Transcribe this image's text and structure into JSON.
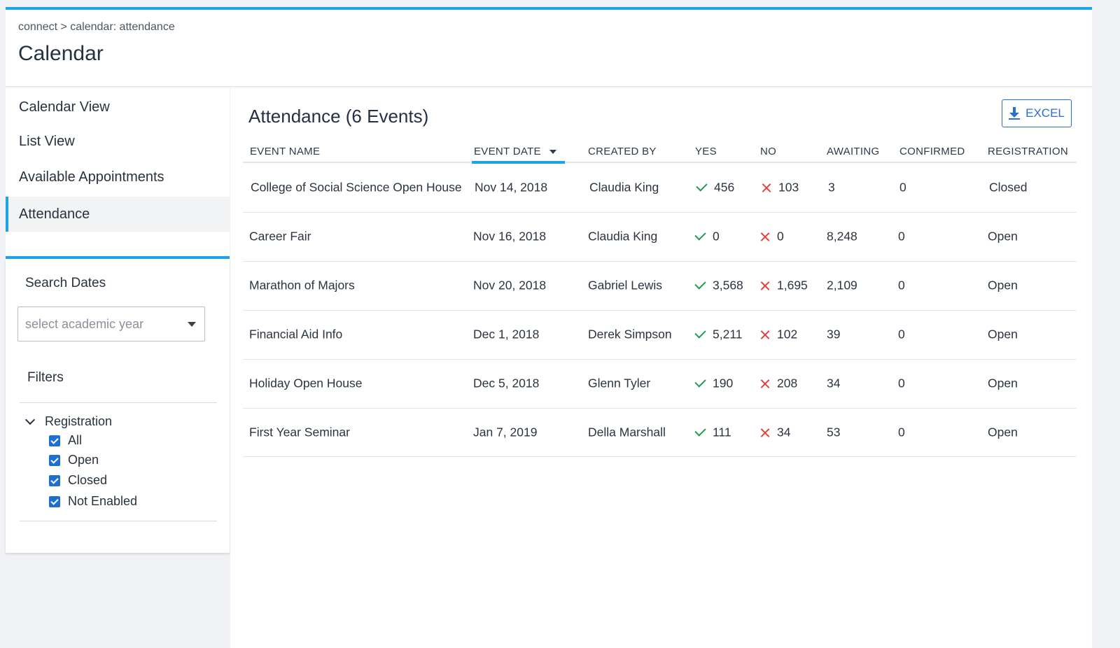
{
  "header": {
    "breadcrumb": "connect > calendar: attendance",
    "title": "Calendar"
  },
  "sidebar": {
    "nav": [
      {
        "label": "Calendar View"
      },
      {
        "label": "List View"
      },
      {
        "label": "Available Appointments"
      },
      {
        "label": "Attendance",
        "active": true
      }
    ],
    "search_dates_label": "Search Dates",
    "academic_year_placeholder": "select academic year",
    "filters_label": "Filters",
    "registration_group": {
      "label": "Registration",
      "options": [
        {
          "label": "All",
          "checked": true
        },
        {
          "label": "Open",
          "checked": true
        },
        {
          "label": "Closed",
          "checked": true
        },
        {
          "label": "Not Enabled",
          "checked": true
        }
      ]
    }
  },
  "main": {
    "title": "Attendance (6 Events)",
    "excel_label": "EXCEL",
    "columns": {
      "event_name": "EVENT NAME",
      "event_date": "EVENT DATE",
      "created_by": "CREATED BY",
      "yes": "YES",
      "no": "NO",
      "awaiting": "AWAITING",
      "confirmed": "CONFIRMED",
      "registration": "REGISTRATION"
    },
    "rows": [
      {
        "name": "College of Social Science Open House",
        "date": "Nov 14, 2018",
        "created_by": "Claudia King",
        "yes": "456",
        "no": "103",
        "awaiting": "3",
        "confirmed": "0",
        "registration": "Closed"
      },
      {
        "name": "Career Fair",
        "date": "Nov 16, 2018",
        "created_by": "Claudia King",
        "yes": "0",
        "no": "0",
        "awaiting": "8,248",
        "confirmed": "0",
        "registration": "Open"
      },
      {
        "name": "Marathon of Majors",
        "date": "Nov 20, 2018",
        "created_by": "Gabriel Lewis",
        "yes": "3,568",
        "no": "1,695",
        "awaiting": "2,109",
        "confirmed": "0",
        "registration": "Open"
      },
      {
        "name": "Financial Aid Info",
        "date": "Dec 1, 2018",
        "created_by": "Derek Simpson",
        "yes": "5,211",
        "no": "102",
        "awaiting": "39",
        "confirmed": "0",
        "registration": "Open"
      },
      {
        "name": "Holiday Open House",
        "date": "Dec 5, 2018",
        "created_by": "Glenn Tyler",
        "yes": "190",
        "no": "208",
        "awaiting": "34",
        "confirmed": "0",
        "registration": "Open"
      },
      {
        "name": "First Year Seminar",
        "date": "Jan 7, 2019",
        "created_by": "Della Marshall",
        "yes": "111",
        "no": "34",
        "awaiting": "53",
        "confirmed": "0",
        "registration": "Open"
      }
    ]
  },
  "colors": {
    "accent": "#1ea3e6",
    "button": "#2b6fd1",
    "yes": "#1f9a4f",
    "no": "#e0403c"
  }
}
